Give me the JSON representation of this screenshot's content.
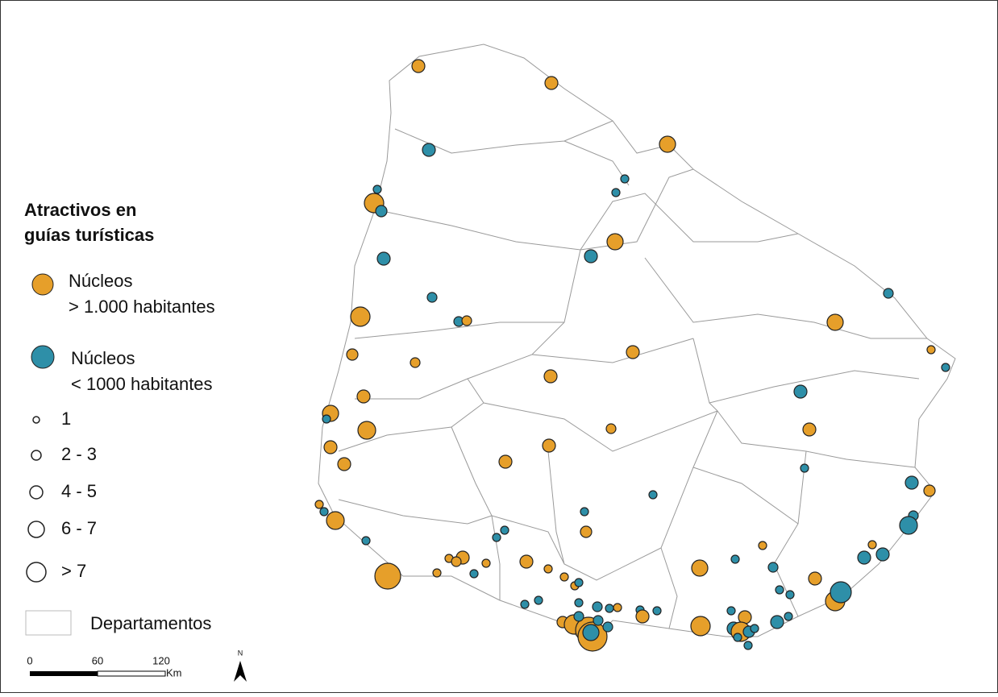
{
  "legend": {
    "title": [
      "Atractivos en",
      "guías turísticas"
    ],
    "items": [
      {
        "lines": [
          "Núcleos",
          "> 1.000 habitantes"
        ]
      },
      {
        "lines": [
          "Núcleos",
          "< 1000 habitantes"
        ]
      }
    ],
    "sizes": [
      "1",
      "2 - 3",
      "4 - 5",
      "6 - 7",
      "> 7"
    ],
    "departments": "Departamentos"
  },
  "scale_bar": {
    "labels": [
      "0",
      "60",
      "120"
    ],
    "unit": "Km"
  },
  "north": "N"
}
